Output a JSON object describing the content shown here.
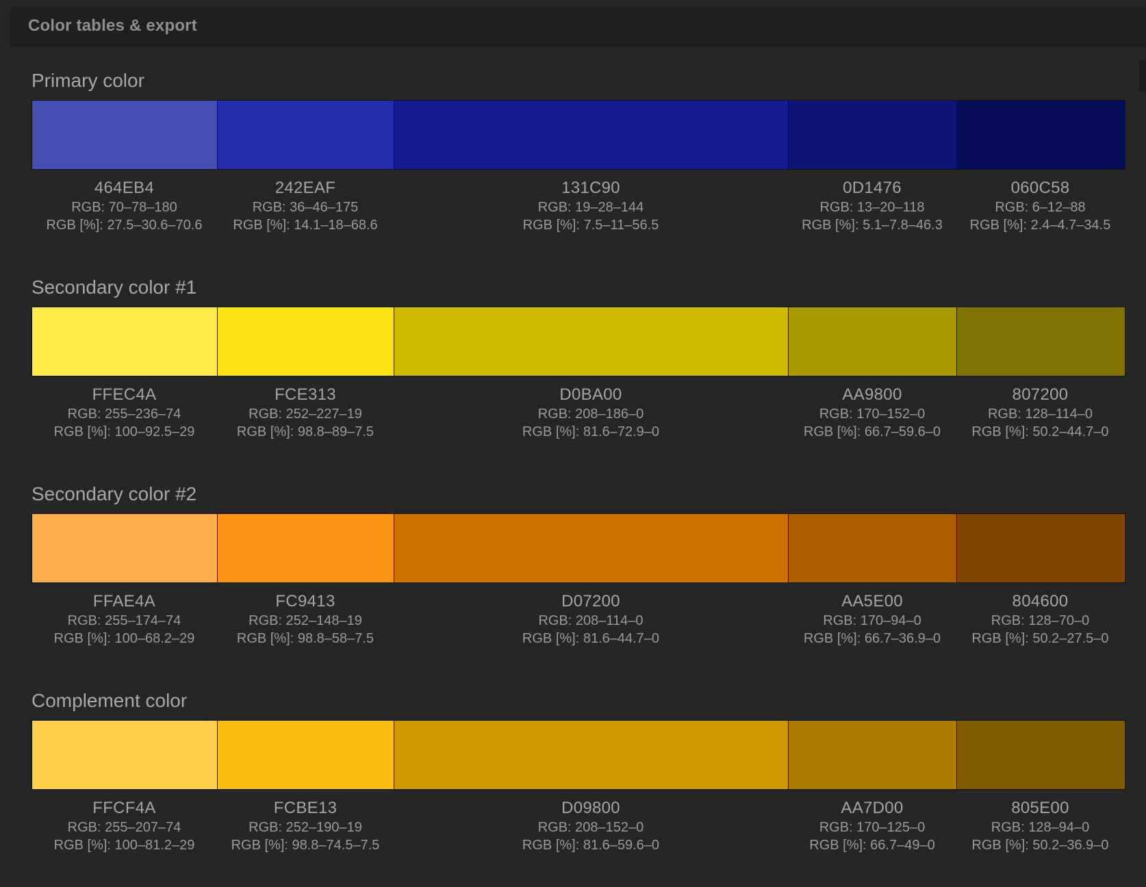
{
  "panel": {
    "title": "Color tables & export"
  },
  "sections": [
    {
      "title": "Primary color",
      "swatches": [
        {
          "hex": "464EB4",
          "color": "#464EB4",
          "rgb": "RGB: 70–78–180",
          "rgb_pct": "RGB [%]: 27.5–30.6–70.6"
        },
        {
          "hex": "242EAF",
          "color": "#242EAF",
          "rgb": "RGB: 36–46–175",
          "rgb_pct": "RGB [%]: 14.1–18–68.6"
        },
        {
          "hex": "131C90",
          "color": "#131C90",
          "rgb": "RGB: 19–28–144",
          "rgb_pct": "RGB [%]: 7.5–11–56.5"
        },
        {
          "hex": "0D1476",
          "color": "#0D1476",
          "rgb": "RGB: 13–20–118",
          "rgb_pct": "RGB [%]: 5.1–7.8–46.3"
        },
        {
          "hex": "060C58",
          "color": "#060C58",
          "rgb": "RGB: 6–12–88",
          "rgb_pct": "RGB [%]: 2.4–4.7–34.5"
        }
      ]
    },
    {
      "title": "Secondary color #1",
      "swatches": [
        {
          "hex": "FFEC4A",
          "color": "#FFEC4A",
          "rgb": "RGB: 255–236–74",
          "rgb_pct": "RGB [%]: 100–92.5–29"
        },
        {
          "hex": "FCE313",
          "color": "#FCE313",
          "rgb": "RGB: 252–227–19",
          "rgb_pct": "RGB [%]: 98.8–89–7.5"
        },
        {
          "hex": "D0BA00",
          "color": "#D0BA00",
          "rgb": "RGB: 208–186–0",
          "rgb_pct": "RGB [%]: 81.6–72.9–0"
        },
        {
          "hex": "AA9800",
          "color": "#AA9800",
          "rgb": "RGB: 170–152–0",
          "rgb_pct": "RGB [%]: 66.7–59.6–0"
        },
        {
          "hex": "807200",
          "color": "#807200",
          "rgb": "RGB: 128–114–0",
          "rgb_pct": "RGB [%]: 50.2–44.7–0"
        }
      ]
    },
    {
      "title": "Secondary color #2",
      "swatches": [
        {
          "hex": "FFAE4A",
          "color": "#FFAE4A",
          "rgb": "RGB: 255–174–74",
          "rgb_pct": "RGB [%]: 100–68.2–29"
        },
        {
          "hex": "FC9413",
          "color": "#FC9413",
          "rgb": "RGB: 252–148–19",
          "rgb_pct": "RGB [%]: 98.8–58–7.5"
        },
        {
          "hex": "D07200",
          "color": "#D07200",
          "rgb": "RGB: 208–114–0",
          "rgb_pct": "RGB [%]: 81.6–44.7–0"
        },
        {
          "hex": "AA5E00",
          "color": "#AA5E00",
          "rgb": "RGB: 170–94–0",
          "rgb_pct": "RGB [%]: 66.7–36.9–0"
        },
        {
          "hex": "804600",
          "color": "#804600",
          "rgb": "RGB: 128–70–0",
          "rgb_pct": "RGB [%]: 50.2–27.5–0"
        }
      ]
    },
    {
      "title": "Complement color",
      "swatches": [
        {
          "hex": "FFCF4A",
          "color": "#FFCF4A",
          "rgb": "RGB: 255–207–74",
          "rgb_pct": "RGB [%]: 100–81.2–29"
        },
        {
          "hex": "FCBE13",
          "color": "#FCBE13",
          "rgb": "RGB: 252–190–19",
          "rgb_pct": "RGB [%]: 98.8–74.5–7.5"
        },
        {
          "hex": "D09800",
          "color": "#D09800",
          "rgb": "RGB: 208–152–0",
          "rgb_pct": "RGB [%]: 81.6–59.6–0"
        },
        {
          "hex": "AA7D00",
          "color": "#AA7D00",
          "rgb": "RGB: 170–125–0",
          "rgb_pct": "RGB [%]: 66.7–49–0"
        },
        {
          "hex": "805E00",
          "color": "#805E00",
          "rgb": "RGB: 128–94–0",
          "rgb_pct": "RGB [%]: 50.2–36.9–0"
        }
      ]
    }
  ]
}
